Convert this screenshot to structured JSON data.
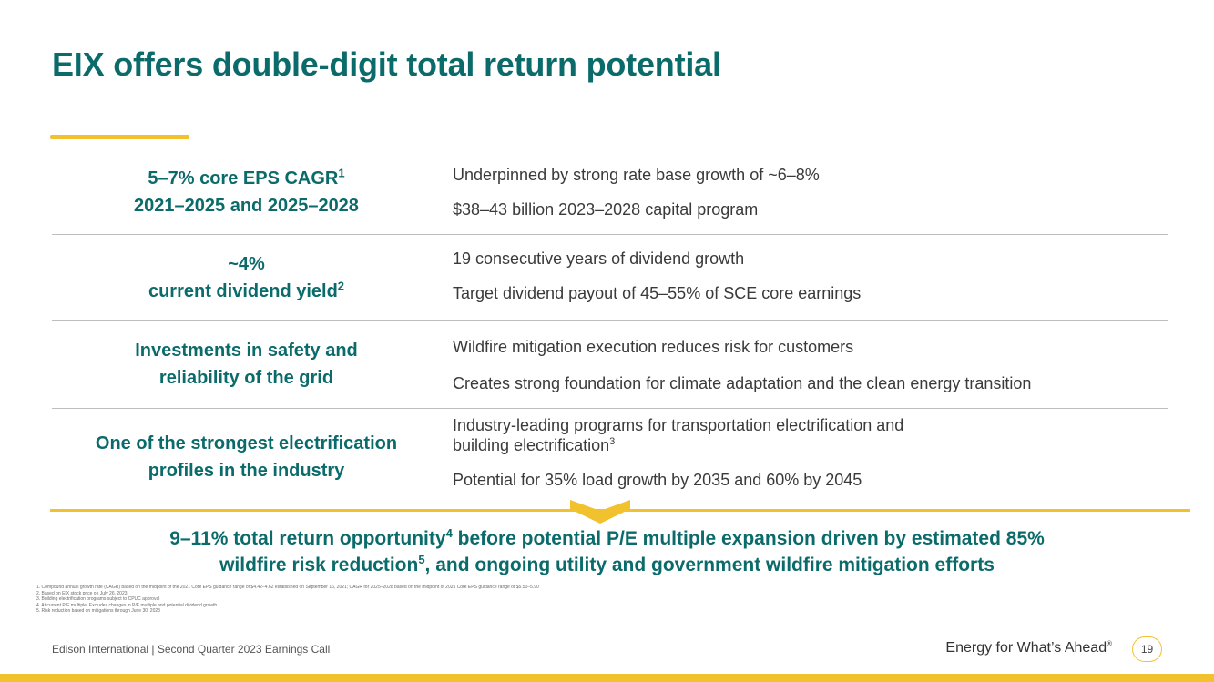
{
  "title": "EIX offers double-digit total return potential",
  "rows": [
    {
      "label_line1": "5–7% core EPS CAGR",
      "label_sup": "1",
      "label_line2": "2021–2025 and 2025–2028",
      "points": [
        "Underpinned by strong rate base growth of ~6–8%",
        "$38–43 billion 2023–2028 capital program"
      ]
    },
    {
      "label_line1": "~4%",
      "label_line2": "current dividend yield",
      "label_sup": "2",
      "points": [
        "19 consecutive years of dividend growth",
        "Target dividend payout of 45–55% of SCE core earnings"
      ]
    },
    {
      "label_line1": "Investments in safety and",
      "label_line2": "reliability of the grid",
      "points": [
        "Wildfire mitigation execution reduces risk for customers",
        "Creates strong foundation for climate adaptation and the clean energy transition"
      ]
    },
    {
      "label_line1": "One of the strongest electrification",
      "label_line2": "profiles in the industry",
      "point1_line1": "Industry-leading programs for transportation electrification and",
      "point1_line2": "building electrification",
      "point1_sup": "3",
      "point2": "Potential for 35% load growth by 2035 and 60% by 2045"
    }
  ],
  "summary": {
    "part1": "9–11% total return opportunity",
    "sup1": "4",
    "part2": " before potential P/E multiple expansion driven by estimated 85%",
    "part3": "wildfire risk reduction",
    "sup2": "5",
    "part4": ", and ongoing utility and government wildfire mitigation efforts"
  },
  "footnotes": [
    "1.  Compound annual growth rate (CAGR) based on the midpoint of the 2021 Core EPS guidance range of $4.42–4.62 established on September 16, 2021; CAGR for 2025–2028 based on the midpoint of 2025 Core EPS guidance range of $5.50–5.90",
    "2.  Based on EIX stock price on July 26, 2023",
    "3.  Building electrification programs subject to CPUC approval",
    "4.  At current P/E multiple. Excludes changes in P/E multiple and potential dividend growth",
    "5.  Risk reduction based on mitigations through June 30, 2023"
  ],
  "footer": {
    "left": "Edison International |  Second Quarter 2023 Earnings Call",
    "tagline": "Energy for What’s Ahead",
    "tagline_mark": "®",
    "page": "19"
  },
  "colors": {
    "teal": "#0b6b6b",
    "gold": "#f2c12e"
  }
}
